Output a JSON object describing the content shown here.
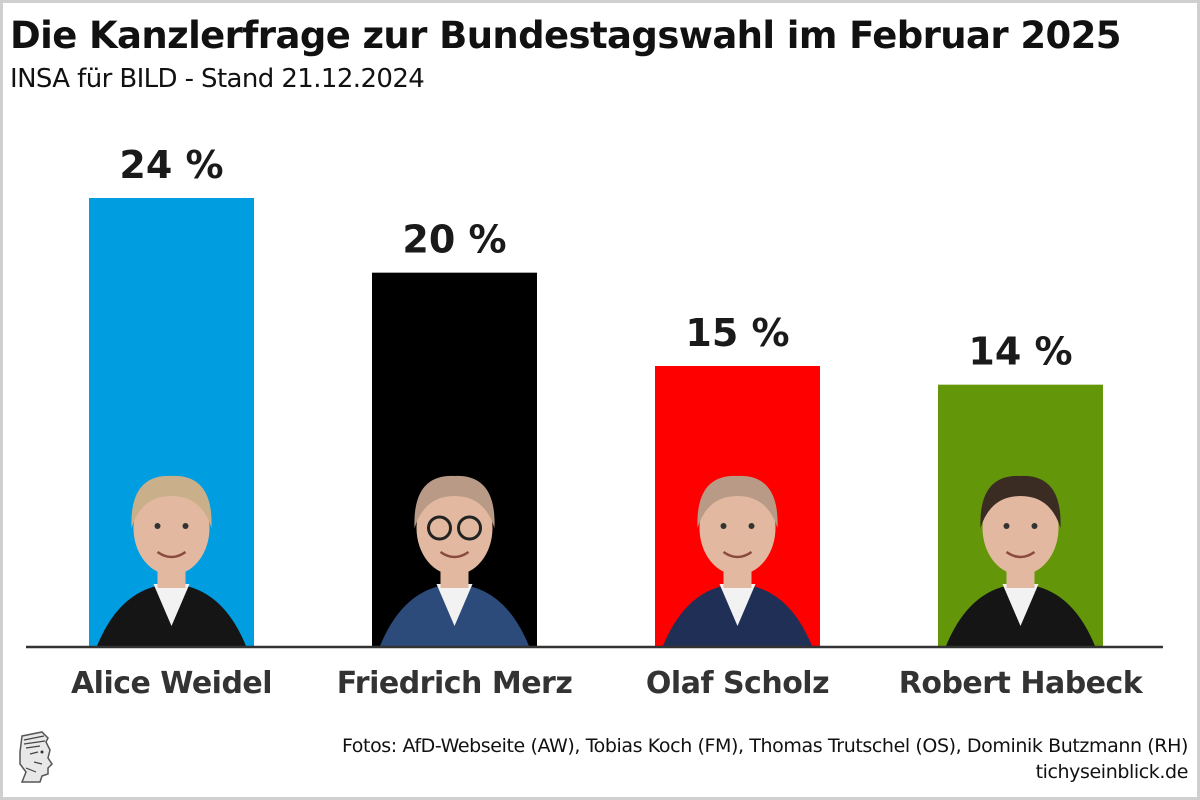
{
  "header": {
    "title": "Die Kanzlerfrage zur Bundestagswahl im Februar 2025",
    "subtitle": "INSA für BILD - Stand 21.12.2024"
  },
  "chart_data": {
    "type": "bar",
    "title": "Die Kanzlerfrage zur Bundestagswahl im Februar 2025",
    "subtitle": "INSA für BILD - Stand 21.12.2024",
    "xlabel": "",
    "ylabel": "",
    "ylim": [
      0,
      24
    ],
    "grid": false,
    "categories": [
      "Alice Weidel",
      "Friedrich Merz",
      "Olaf Scholz",
      "Robert Habeck"
    ],
    "values": [
      24,
      20,
      15,
      14
    ],
    "value_labels": [
      "24 %",
      "20 %",
      "15 %",
      "14 %"
    ],
    "colors": [
      "#009ee0",
      "#000000",
      "#ff0000",
      "#64960a"
    ]
  },
  "footer": {
    "credits": "Fotos: AfD-Webseite (AW), Tobias Koch (FM), Thomas Trutschel (OS), Dominik Butzmann (RH)",
    "source": "tichyseinblick.de",
    "logo_icon": "hermes-head-logo-icon"
  }
}
